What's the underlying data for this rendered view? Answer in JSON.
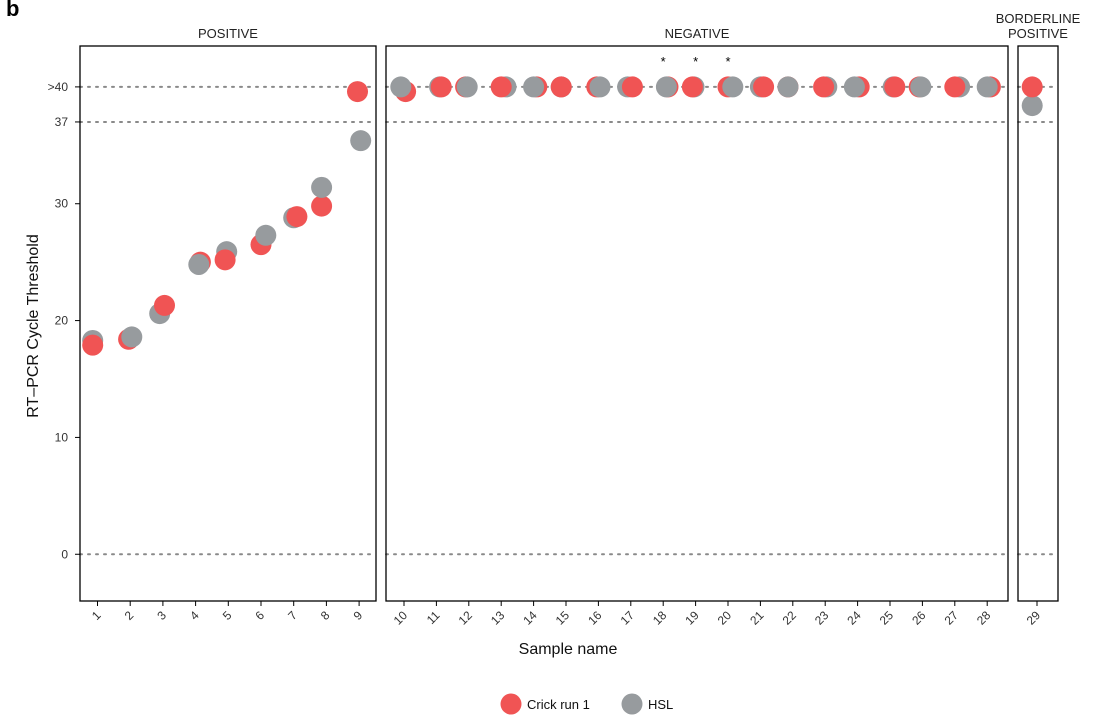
{
  "panel_tag": "b",
  "chart_data": {
    "type": "scatter",
    "xlabel": "Sample name",
    "ylabel": "RT–PCR Cycle Threshold",
    "ylim": [
      -4,
      43.5
    ],
    "y_ticks": [
      {
        "value": 0,
        "label": "0"
      },
      {
        "value": 10,
        "label": "10"
      },
      {
        "value": 20,
        "label": "20"
      },
      {
        "value": 30,
        "label": "30"
      },
      {
        "value": 37,
        "label": "37"
      },
      {
        "value": 40,
        "label": ">40"
      }
    ],
    "reference_lines": [
      0,
      37,
      40
    ],
    "panels": [
      {
        "title": "POSITIVE",
        "samples": [
          "1",
          "2",
          "3",
          "4",
          "5",
          "6",
          "7",
          "8",
          "9"
        ]
      },
      {
        "title": "NEGATIVE",
        "samples": [
          "10",
          "11",
          "12",
          "13",
          "14",
          "15",
          "16",
          "17",
          "18",
          "19",
          "20",
          "21",
          "22",
          "23",
          "24",
          "25",
          "26",
          "27",
          "28"
        ]
      },
      {
        "title_lines": [
          "BORDERLINE",
          "POSITIVE"
        ],
        "samples": [
          "29"
        ]
      }
    ],
    "annotations": [
      {
        "sample": "18",
        "text": "*"
      },
      {
        "sample": "19",
        "text": "*"
      },
      {
        "sample": "20",
        "text": "*"
      }
    ],
    "legend": {
      "position": "bottom"
    },
    "series": [
      {
        "name": "Crick run 1",
        "color": "#f05454",
        "values": [
          17.9,
          18.4,
          21.3,
          25.0,
          25.2,
          26.5,
          28.9,
          29.8,
          39.6,
          39.6,
          40,
          40,
          40,
          40,
          40,
          40,
          40,
          40,
          40,
          40,
          40,
          40,
          40,
          40,
          40,
          40,
          40,
          40,
          40
        ]
      },
      {
        "name": "HSL",
        "color": "#979b9e",
        "values": [
          18.3,
          18.6,
          20.6,
          24.8,
          25.9,
          27.3,
          28.8,
          31.4,
          35.4,
          40,
          40,
          40,
          40,
          40,
          40,
          40,
          40,
          40,
          40,
          40,
          40,
          40,
          40,
          40,
          40,
          40,
          40,
          40,
          38.4
        ]
      }
    ]
  }
}
